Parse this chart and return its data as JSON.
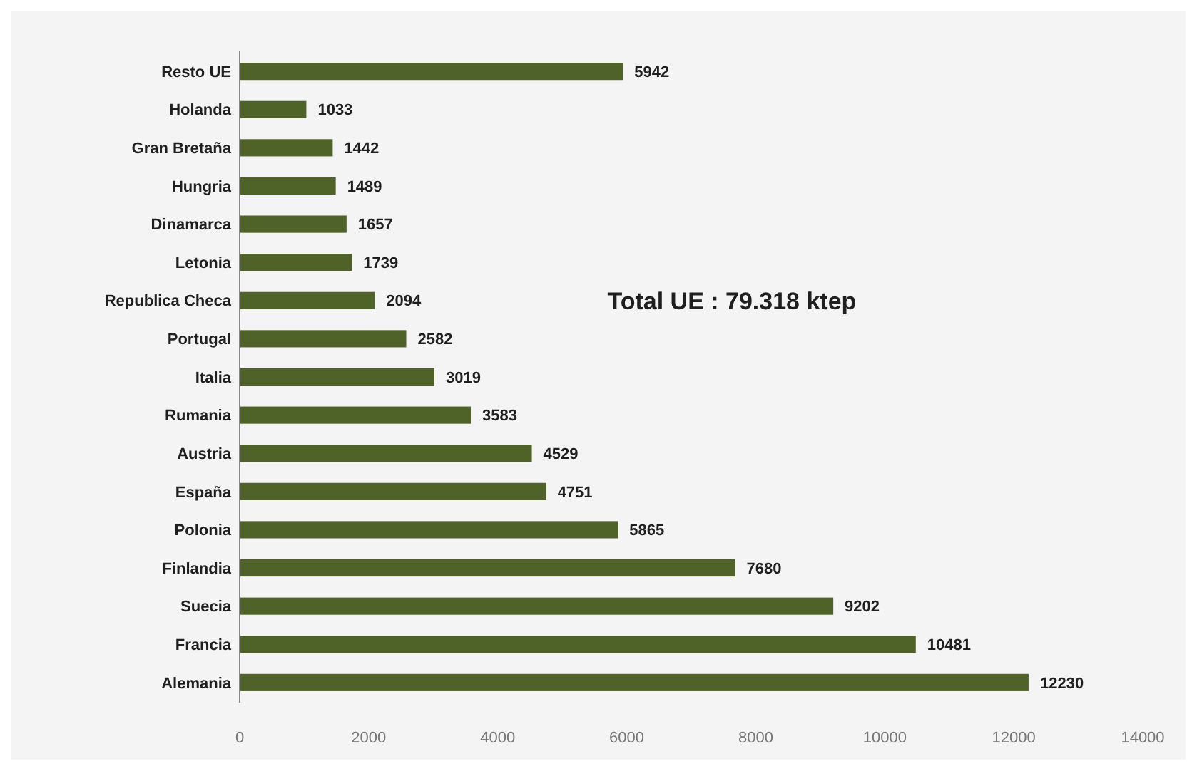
{
  "chart_data": {
    "type": "bar",
    "orientation": "horizontal",
    "categories": [
      "Resto UE",
      "Holanda",
      "Gran Bretaña",
      "Hungria",
      "Dinamarca",
      "Letonia",
      "Republica Checa",
      "Portugal",
      "Italia",
      "Rumania",
      "Austria",
      "España",
      "Polonia",
      "Finlandia",
      "Suecia",
      "Francia",
      "Alemania"
    ],
    "values": [
      5942,
      1033,
      1442,
      1489,
      1657,
      1739,
      2094,
      2582,
      3019,
      3583,
      4529,
      4751,
      5865,
      7680,
      9202,
      10481,
      12230
    ],
    "color": "#4f6228",
    "xlim": [
      0,
      14000
    ],
    "xticks": [
      0,
      2000,
      4000,
      6000,
      8000,
      10000,
      12000,
      14000
    ],
    "data_labels": true,
    "grid": false,
    "annotations": [
      "Total UE : 79.318 ktep"
    ]
  }
}
